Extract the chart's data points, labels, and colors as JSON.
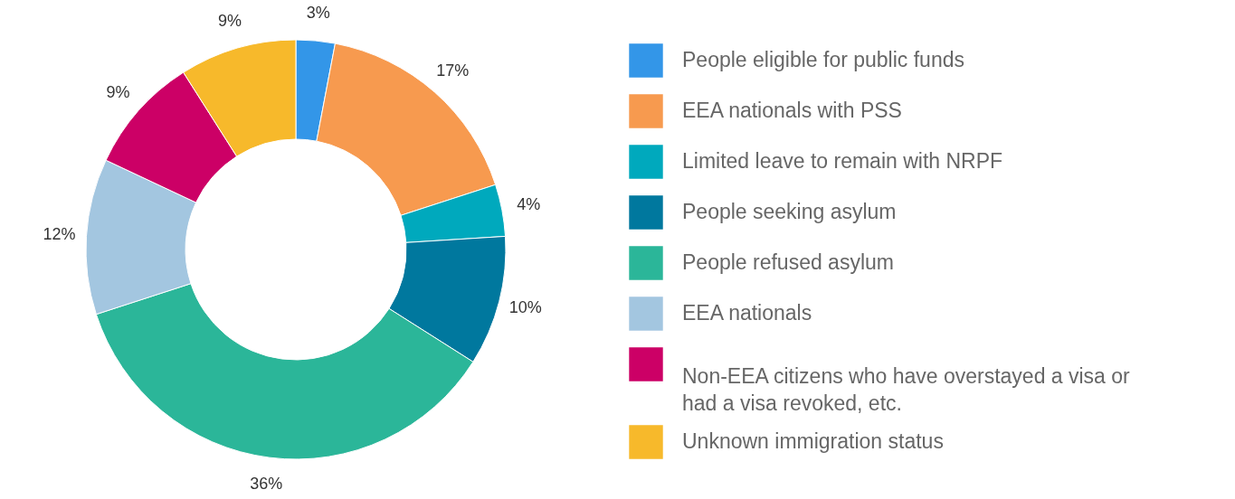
{
  "chart_data": {
    "type": "donut",
    "categories": [
      "People eligible for public funds",
      "EEA nationals with PSS",
      "Limited leave to remain with NRPF",
      "People seeking asylum",
      "People refused asylum",
      "EEA nationals",
      "Non-EEA citizens who have overstayed a visa or had a visa revoked, etc.",
      "Unknown immigration status"
    ],
    "values": [
      3,
      17,
      4,
      10,
      36,
      12,
      9,
      9
    ],
    "colors": [
      "#3396e8",
      "#f79a4f",
      "#00a9bd",
      "#00789e",
      "#2bb699",
      "#a3c6e0",
      "#cc0066",
      "#f7b92b"
    ],
    "value_labels": [
      "3%",
      "17%",
      "4%",
      "10%",
      "36%",
      "12%",
      "9%",
      "9%"
    ],
    "legend": "right"
  }
}
